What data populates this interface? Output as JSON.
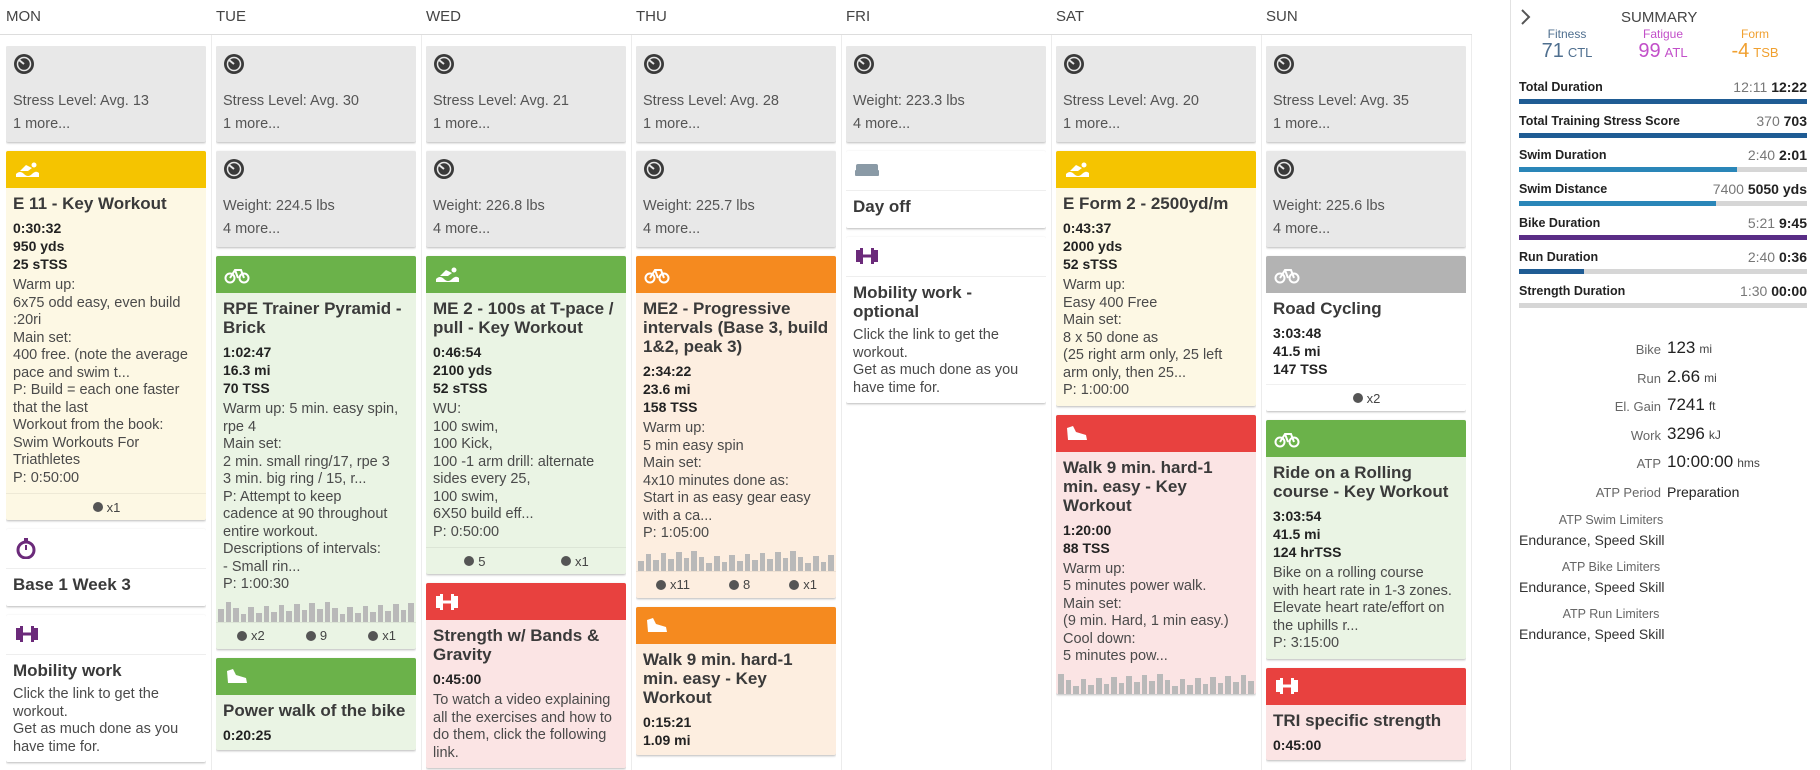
{
  "header": {
    "days": [
      "MON",
      "TUE",
      "WED",
      "THU",
      "FRI",
      "SAT",
      "SUN"
    ],
    "summary_title": "SUMMARY"
  },
  "days": [
    {
      "cards": [
        {
          "text": [
            "Stress Level: Avg. 13",
            "1 more..."
          ]
        },
        {
          "header_color": "#f5c400",
          "bg": "#fdf8e4",
          "title": "E 11 - Key Workout",
          "stats": [
            "0:30:32",
            "950 yds",
            "25 sTSS"
          ],
          "text": [
            "Warm up:",
            "6x75 odd easy, even build",
            ":20ri",
            "Main set:",
            "400 free. (note the average",
            "pace and swim t...",
            "P: Build = each one faster",
            "that the last",
            "Workout from the book:",
            "Swim Workouts For",
            "Triathletes",
            "P: 0:50:00"
          ],
          "footer": [
            "x1"
          ]
        },
        {
          "icon_color": "#6b2a7a",
          "bg": "#ffffff",
          "title": "Base 1 Week 3"
        },
        {
          "icon_color": "#6b2a7a",
          "bg": "#ffffff",
          "title": "Mobility work",
          "text": [
            "Click the link to get the",
            "workout.",
            "Get as much done as you",
            "have time for."
          ]
        }
      ]
    },
    {
      "cards": [
        {
          "text": [
            "Stress Level: Avg. 30",
            "1 more..."
          ]
        },
        {
          "text": [
            "Weight: 224.5 lbs",
            "4 more..."
          ]
        },
        {
          "header_color": "#6bb24a",
          "bg": "#eaf4e4",
          "title": "RPE Trainer Pyramid - Brick",
          "stats": [
            "1:02:47",
            "16.3 mi",
            "70 TSS"
          ],
          "text": [
            "Warm up: 5 min. easy spin,",
            "rpe 4",
            "Main set:",
            "2 min. small ring/17, rpe 3",
            "3 min. big ring / 15, r...",
            "P: Attempt to keep",
            "cadence at 90 throughout",
            "entire workout.",
            "Descriptions of intervals:",
            "- Small rin...",
            "P: 1:00:30"
          ],
          "footer": [
            "x2",
            "9",
            "x1"
          ]
        },
        {
          "header_color": "#6bb24a",
          "bg": "#eaf4e4",
          "title": "Power walk of the bike",
          "stats": [
            "0:20:25"
          ]
        }
      ]
    },
    {
      "cards": [
        {
          "text": [
            "Stress Level: Avg. 21",
            "1 more..."
          ]
        },
        {
          "text": [
            "Weight: 226.8 lbs",
            "4 more..."
          ]
        },
        {
          "header_color": "#6bb24a",
          "bg": "#eaf4e4",
          "title": "ME 2 - 100s at T-pace / pull - Key Workout",
          "stats": [
            "0:46:54",
            "2100 yds",
            "52 sTSS"
          ],
          "text": [
            "WU:",
            "100 swim,",
            "100 Kick,",
            "100 -1 arm drill: alternate",
            "sides every 25,",
            "100 swim,",
            "6X50 build eff...",
            "P: 0:50:00"
          ],
          "footer": [
            "5",
            "x1"
          ]
        },
        {
          "header_color": "#e8413f",
          "bg": "#fbe4e4",
          "title": "Strength w/ Bands & Gravity",
          "stats": [
            "0:45:00"
          ],
          "text": [
            "To watch a video explaining",
            "all the exercises and how to",
            "do them, click the following",
            "link."
          ]
        }
      ]
    },
    {
      "cards": [
        {
          "text": [
            "Stress Level: Avg. 28",
            "1 more..."
          ]
        },
        {
          "text": [
            "Weight: 225.7 lbs",
            "4 more..."
          ]
        },
        {
          "header_color": "#f58a1f",
          "bg": "#fdeee0",
          "title": "ME2 - Progressive intervals (Base 3, build 1&2, peak 3)",
          "stats": [
            "2:34:22",
            "23.6 mi",
            "158 TSS"
          ],
          "text": [
            "Warm up:",
            "5 min easy spin",
            "Main set:",
            "4x10 minutes done as:",
            "Start in as easy gear easy",
            "with a ca...",
            "P: 1:05:00"
          ],
          "footer": [
            "x11",
            "8",
            "x1"
          ]
        },
        {
          "header_color": "#f58a1f",
          "bg": "#fdeee0",
          "title": "Walk 9 min. hard-1 min. easy - Key Workout",
          "stats": [
            "0:15:21",
            "1.09 mi"
          ]
        }
      ]
    },
    {
      "cards": [
        {
          "text": [
            "Weight: 223.3 lbs",
            "4 more..."
          ]
        },
        {
          "icon_color": "#8a9aa6",
          "bg": "#ffffff",
          "title": "Day off"
        },
        {
          "icon_color": "#6b2a7a",
          "bg": "#ffffff",
          "title": "Mobility work - optional",
          "text": [
            "Click the link to get the",
            "workout.",
            "Get as much done as you",
            "have time for."
          ]
        }
      ]
    },
    {
      "cards": [
        {
          "text": [
            "Stress Level: Avg. 20",
            "1 more..."
          ]
        },
        {
          "header_color": "#f5c400",
          "bg": "#fdf8e4",
          "title": "E Form 2 - 2500yd/m",
          "stats": [
            "0:43:37",
            "2000 yds",
            "52 sTSS"
          ],
          "text": [
            "Warm up:",
            "Easy 400 Free",
            "Main set:",
            "8 x 50 done as",
            "(25 right arm only, 25 left",
            "arm only, then 25...",
            "P: 1:00:00"
          ]
        },
        {
          "header_color": "#e8413f",
          "bg": "#fbe4e4",
          "title": "Walk 9 min. hard-1 min. easy - Key Workout",
          "stats": [
            "1:20:00",
            "88 TSS"
          ],
          "text": [
            "Warm up:",
            "5 minutes power walk.",
            "Main set:",
            "(9 min. Hard, 1 min easy.)",
            "Cool down:",
            "5 minutes pow..."
          ]
        }
      ]
    },
    {
      "cards": [
        {
          "text": [
            "Stress Level: Avg. 35",
            "1 more..."
          ]
        },
        {
          "text": [
            "Weight: 225.6 lbs",
            "4 more..."
          ]
        },
        {
          "header_color": "#b3b3b3",
          "bg": "#ffffff",
          "title": "Road Cycling",
          "stats": [
            "3:03:48",
            "41.5 mi",
            "147 TSS"
          ],
          "footer": [
            "x2"
          ]
        },
        {
          "header_color": "#6bb24a",
          "bg": "#eaf4e4",
          "title": "Ride on a Rolling course - Key Workout",
          "stats": [
            "3:03:54",
            "41.5 mi",
            "124 hrTSS"
          ],
          "text": [
            "Bike on a rolling course",
            "with heart rate in 1-3 zones.",
            "Elevate heart rate/effort on",
            "the uphills r...",
            "P: 3:15:00"
          ]
        },
        {
          "header_color": "#e8413f",
          "bg": "#fbe4e4",
          "title": "TRI specific strength",
          "stats": [
            "0:45:00"
          ]
        }
      ]
    }
  ],
  "summary": {
    "gauges": [
      {
        "label": "Fitness",
        "value": 71,
        "unit": "CTL",
        "color": "#4f6f8f"
      },
      {
        "label": "Fatigue",
        "value": 99,
        "unit": "ATL",
        "color": "#c24fc9"
      },
      {
        "label": "Form",
        "value": -4,
        "unit": "TSB",
        "color": "#f0a030"
      }
    ],
    "progress": [
      {
        "label": "Total Duration",
        "planned": "12:11",
        "completed": "12:22",
        "color": "#1f5c94"
      },
      {
        "label": "Total Training Stress Score",
        "planned": 370,
        "completed": 703,
        "color": "#1f5c94"
      },
      {
        "label": "Swim Duration",
        "planned": "2:40",
        "completed": "2:01",
        "color": "#2a86b8"
      },
      {
        "label": "Swim Distance",
        "planned": 7400,
        "completed": 5050,
        "unit": "yds",
        "color": "#2a86b8"
      },
      {
        "label": "Bike Duration",
        "planned": "5:21",
        "completed": "9:45",
        "color": "#5a2d86"
      },
      {
        "label": "Run Duration",
        "planned": "2:40",
        "completed": "0:36",
        "color": "#1f5c94"
      },
      {
        "label": "Strength Duration",
        "planned": "1:30",
        "completed": "00:00",
        "color": "#888888"
      }
    ],
    "stats": [
      {
        "label": "Bike",
        "value": 123,
        "unit": "mi"
      },
      {
        "label": "Run",
        "value": 2.66,
        "unit": "mi"
      },
      {
        "label": "El. Gain",
        "value": 7241,
        "unit": "ft"
      },
      {
        "label": "Work",
        "value": 3296,
        "unit": "kJ"
      },
      {
        "label": "ATP",
        "value": "10:00:00",
        "unit": "hms"
      }
    ],
    "atp_period": {
      "label": "ATP Period",
      "value": "Preparation"
    },
    "limiters": [
      {
        "label": "ATP Swim Limiters",
        "value": "Endurance, Speed Skill"
      },
      {
        "label": "ATP Bike Limiters",
        "value": "Endurance, Speed Skill"
      },
      {
        "label": "ATP Run Limiters",
        "value": "Endurance, Speed Skill"
      }
    ]
  }
}
